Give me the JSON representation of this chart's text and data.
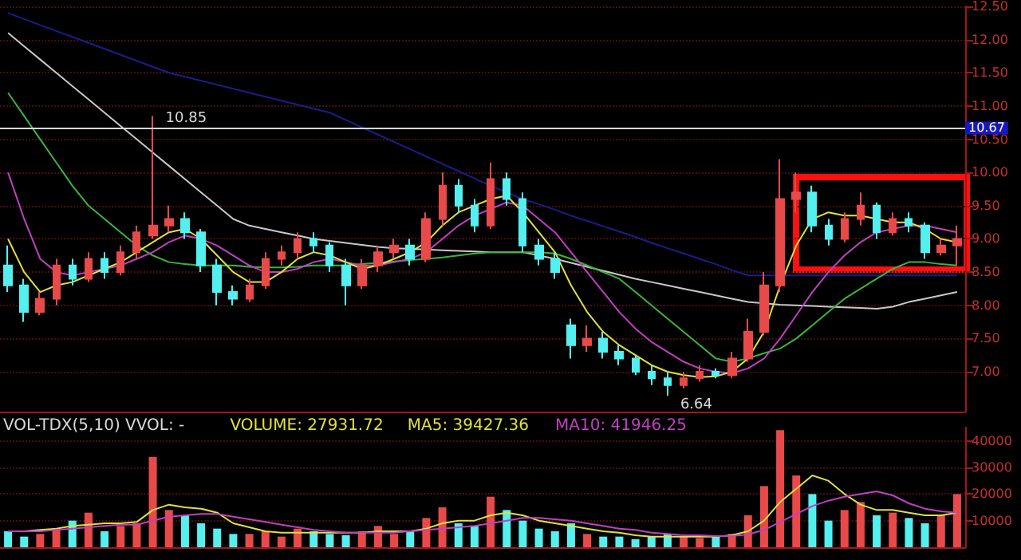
{
  "chart_data": [
    {
      "type": "candlestick",
      "categories": [
        null,
        null,
        null,
        null,
        null,
        null,
        null,
        null,
        null,
        null,
        null,
        null,
        null,
        null,
        null,
        null,
        null,
        null,
        null,
        null,
        null,
        null,
        null,
        null,
        null,
        null,
        null,
        null,
        null,
        null,
        null,
        null,
        null,
        null,
        null,
        null,
        null,
        null,
        null,
        null,
        null,
        null,
        null,
        null,
        null,
        null,
        null,
        null,
        null,
        null,
        null,
        null,
        null,
        null,
        null,
        null,
        null,
        null,
        null,
        null
      ],
      "ylim": [
        6.4,
        12.5
      ],
      "yticks": [
        {
          "value": 7,
          "label": "7.00"
        },
        {
          "value": 7.5,
          "label": "7.50"
        },
        {
          "value": 8,
          "label": "8.00"
        },
        {
          "value": 8.5,
          "label": "8.50"
        },
        {
          "value": 9,
          "label": "9.00"
        },
        {
          "value": 9.5,
          "label": "9.50"
        },
        {
          "value": 10,
          "label": "10.00"
        },
        {
          "value": 10.5,
          "label": "10.50"
        },
        {
          "value": 11,
          "label": "11.00"
        },
        {
          "value": 11.5,
          "label": "11.50"
        },
        {
          "value": 12,
          "label": "12.00"
        },
        {
          "value": 12.5,
          "label": "12.50"
        }
      ],
      "tick_labels": "y",
      "grid": "y",
      "marker": "none",
      "line_style": "solid",
      "ref_lines": [
        {
          "axis": "y",
          "value": 10.67,
          "label": "10.67",
          "color": "#d8d8d8"
        }
      ],
      "annotations": [
        "10.85",
        "6.64"
      ],
      "series": [
        {
          "type": "line",
          "color": "#1c1c8c",
          "values": [
            12.4,
            12.31,
            12.22,
            12.13,
            12.04,
            11.95,
            11.86,
            11.77,
            11.68,
            11.59,
            11.5,
            11.44,
            11.38,
            11.32,
            11.26,
            11.2,
            11.14,
            11.08,
            11.02,
            10.96,
            10.9,
            10.79,
            10.68,
            10.57,
            10.46,
            10.35,
            10.24,
            10.13,
            10.02,
            9.91,
            9.8,
            9.7,
            9.6,
            9.52,
            9.44,
            9.35,
            9.27,
            9.19,
            9.11,
            9.03,
            8.94,
            8.86,
            8.78,
            8.7,
            8.62,
            8.53,
            8.45,
            8.45,
            8.45,
            8.45,
            8.45,
            8.45,
            8.45,
            8.45,
            8.45,
            8.45,
            8.45,
            8.45,
            8.45,
            8.45
          ]
        },
        {
          "type": "line",
          "color": "#c8c8c8",
          "values": [
            12.1,
            11.9,
            11.7,
            11.5,
            11.3,
            11.1,
            10.9,
            10.7,
            10.5,
            10.3,
            10.1,
            9.9,
            9.7,
            9.5,
            9.3,
            9.2,
            9.15,
            9.1,
            9.05,
            9.0,
            8.97,
            8.94,
            8.91,
            8.88,
            8.86,
            8.85,
            8.84,
            8.83,
            8.82,
            8.81,
            8.8,
            8.8,
            8.8,
            8.75,
            8.7,
            8.64,
            8.58,
            8.52,
            8.46,
            8.4,
            8.35,
            8.3,
            8.25,
            8.2,
            8.15,
            8.1,
            8.05,
            8.03,
            8.01,
            8.0,
            7.99,
            7.98,
            7.97,
            7.96,
            7.95,
            7.98,
            8.05,
            8.1,
            8.15,
            8.2
          ]
        },
        {
          "type": "line",
          "color": "#3cb43c",
          "values": [
            11.2,
            10.85,
            10.5,
            10.15,
            9.8,
            9.5,
            9.3,
            9.1,
            8.9,
            8.75,
            8.65,
            8.62,
            8.6,
            8.6,
            8.6,
            8.58,
            8.57,
            8.57,
            8.58,
            8.6,
            8.6,
            8.6,
            8.62,
            8.64,
            8.66,
            8.68,
            8.7,
            8.72,
            8.75,
            8.78,
            8.8,
            8.8,
            8.8,
            8.8,
            8.78,
            8.7,
            8.6,
            8.5,
            8.4,
            8.2,
            8.0,
            7.8,
            7.6,
            7.4,
            7.2,
            7.15,
            7.2,
            7.28,
            7.35,
            7.5,
            7.7,
            7.9,
            8.1,
            8.25,
            8.4,
            8.55,
            8.65,
            8.65,
            8.62,
            8.6
          ]
        },
        {
          "type": "line",
          "color": "#c040c0",
          "values": [
            10.0,
            9.3,
            8.7,
            8.5,
            8.45,
            8.5,
            8.55,
            8.6,
            8.7,
            8.8,
            8.95,
            9.05,
            9.0,
            8.9,
            8.75,
            8.6,
            8.5,
            8.5,
            8.55,
            8.65,
            8.7,
            8.65,
            8.6,
            8.6,
            8.65,
            8.7,
            8.8,
            9.0,
            9.2,
            9.35,
            9.45,
            9.55,
            9.5,
            9.3,
            9.1,
            8.8,
            8.5,
            8.2,
            7.9,
            7.65,
            7.45,
            7.3,
            7.15,
            7.05,
            7.0,
            6.98,
            7.05,
            7.2,
            7.5,
            7.85,
            8.2,
            8.5,
            8.75,
            8.95,
            9.1,
            9.15,
            9.2,
            9.2,
            9.15,
            9.1
          ]
        },
        {
          "type": "line",
          "color": "#e0e040",
          "values": [
            9.0,
            8.5,
            8.2,
            8.3,
            8.35,
            8.45,
            8.55,
            8.65,
            8.8,
            8.95,
            9.1,
            9.15,
            9.0,
            8.75,
            8.5,
            8.35,
            8.35,
            8.5,
            8.7,
            8.8,
            8.75,
            8.65,
            8.55,
            8.6,
            8.7,
            8.8,
            8.95,
            9.2,
            9.4,
            9.5,
            9.6,
            9.65,
            9.4,
            9.1,
            8.8,
            8.3,
            7.9,
            7.6,
            7.4,
            7.25,
            7.1,
            7.0,
            6.95,
            6.92,
            6.93,
            7.0,
            7.2,
            7.6,
            8.3,
            8.9,
            9.3,
            9.4,
            9.35,
            9.35,
            9.3,
            9.25,
            9.25,
            9.15,
            9.0,
            8.95
          ]
        },
        {
          "type": "candlestick",
          "colors": [
            "#54f0f0",
            "#54f0f0",
            "#e84a4a",
            "#e84a4a",
            "#54f0f0",
            "#e84a4a",
            "#54f0f0",
            "#e84a4a",
            "#e84a4a",
            "#e84a4a",
            "#e84a4a",
            "#54f0f0",
            "#54f0f0",
            "#54f0f0",
            "#54f0f0",
            "#e84a4a",
            "#e84a4a",
            "#e84a4a",
            "#e84a4a",
            "#54f0f0",
            "#54f0f0",
            "#54f0f0",
            "#e84a4a",
            "#e84a4a",
            "#e84a4a",
            "#54f0f0",
            "#e84a4a",
            "#e84a4a",
            "#54f0f0",
            "#54f0f0",
            "#e84a4a",
            "#54f0f0",
            "#54f0f0",
            "#54f0f0",
            "#54f0f0",
            "#54f0f0",
            "#e84a4a",
            "#54f0f0",
            "#54f0f0",
            "#54f0f0",
            "#54f0f0",
            "#54f0f0",
            "#e84a4a",
            "#e84a4a",
            "#54f0f0",
            "#e84a4a",
            "#e84a4a",
            "#e84a4a",
            "#e84a4a",
            "#e84a4a",
            "#54f0f0",
            "#54f0f0",
            "#e84a4a",
            "#e84a4a",
            "#54f0f0",
            "#e84a4a",
            "#54f0f0",
            "#54f0f0",
            "#e84a4a",
            "#e84a4a"
          ],
          "ohlc": [
            [
              8.6,
              8.9,
              8.2,
              8.3
            ],
            [
              8.3,
              8.4,
              7.75,
              7.9
            ],
            [
              7.9,
              8.2,
              7.85,
              8.1
            ],
            [
              8.1,
              8.7,
              8.0,
              8.6
            ],
            [
              8.6,
              8.7,
              8.3,
              8.4
            ],
            [
              8.4,
              8.8,
              8.35,
              8.7
            ],
            [
              8.7,
              8.8,
              8.4,
              8.5
            ],
            [
              8.5,
              8.9,
              8.45,
              8.8
            ],
            [
              8.8,
              9.2,
              8.7,
              9.1
            ],
            [
              9.05,
              10.85,
              9.0,
              9.2
            ],
            [
              9.2,
              9.5,
              9.1,
              9.3
            ],
            [
              9.3,
              9.4,
              9.0,
              9.1
            ],
            [
              9.1,
              9.15,
              8.5,
              8.6
            ],
            [
              8.6,
              8.7,
              8.0,
              8.2
            ],
            [
              8.2,
              8.3,
              8.0,
              8.1
            ],
            [
              8.1,
              8.4,
              8.05,
              8.3
            ],
            [
              8.3,
              8.8,
              8.25,
              8.7
            ],
            [
              8.7,
              8.9,
              8.6,
              8.8
            ],
            [
              8.8,
              9.1,
              8.7,
              9.0
            ],
            [
              9.0,
              9.1,
              8.8,
              8.9
            ],
            [
              8.9,
              8.95,
              8.5,
              8.6
            ],
            [
              8.6,
              8.7,
              8.0,
              8.3
            ],
            [
              8.3,
              8.7,
              8.25,
              8.6
            ],
            [
              8.6,
              8.9,
              8.5,
              8.8
            ],
            [
              8.8,
              9.0,
              8.7,
              8.9
            ],
            [
              8.9,
              9.0,
              8.6,
              8.7
            ],
            [
              8.7,
              9.4,
              8.65,
              9.3
            ],
            [
              9.3,
              10.0,
              9.2,
              9.8
            ],
            [
              9.8,
              9.9,
              9.4,
              9.5
            ],
            [
              9.5,
              9.6,
              9.1,
              9.2
            ],
            [
              9.2,
              10.15,
              9.15,
              9.9
            ],
            [
              9.9,
              10.0,
              9.5,
              9.6
            ],
            [
              9.6,
              9.7,
              8.8,
              8.9
            ],
            [
              8.9,
              9.0,
              8.6,
              8.7
            ],
            [
              8.7,
              8.8,
              8.4,
              8.5
            ],
            [
              7.7,
              7.8,
              7.2,
              7.4
            ],
            [
              7.4,
              7.7,
              7.3,
              7.5
            ],
            [
              7.5,
              7.6,
              7.2,
              7.3
            ],
            [
              7.3,
              7.4,
              7.1,
              7.2
            ],
            [
              7.2,
              7.25,
              6.95,
              7.0
            ],
            [
              7.0,
              7.1,
              6.8,
              6.9
            ],
            [
              6.9,
              7.0,
              6.64,
              6.8
            ],
            [
              6.8,
              7.0,
              6.75,
              6.9
            ],
            [
              6.9,
              7.1,
              6.85,
              7.0
            ],
            [
              7.0,
              7.05,
              6.9,
              6.95
            ],
            [
              6.95,
              7.3,
              6.9,
              7.2
            ],
            [
              7.2,
              7.8,
              7.15,
              7.6
            ],
            [
              7.6,
              8.5,
              7.55,
              8.3
            ],
            [
              8.3,
              10.2,
              8.2,
              9.6
            ],
            [
              9.6,
              10.0,
              9.4,
              9.7
            ],
            [
              9.7,
              9.8,
              9.1,
              9.2
            ],
            [
              9.2,
              9.3,
              8.9,
              9.0
            ],
            [
              9.0,
              9.4,
              8.95,
              9.3
            ],
            [
              9.3,
              9.7,
              9.2,
              9.5
            ],
            [
              9.5,
              9.55,
              9.0,
              9.1
            ],
            [
              9.1,
              9.4,
              9.05,
              9.3
            ],
            [
              9.3,
              9.4,
              9.1,
              9.2
            ],
            [
              9.2,
              9.25,
              8.7,
              8.8
            ],
            [
              8.8,
              9.0,
              8.75,
              8.9
            ],
            [
              8.9,
              9.2,
              8.6,
              9.0
            ]
          ]
        }
      ]
    },
    {
      "type": "bar",
      "categories": [
        null,
        null,
        null,
        null,
        null,
        null,
        null,
        null,
        null,
        null,
        null,
        null,
        null,
        null,
        null,
        null,
        null,
        null,
        null,
        null,
        null,
        null,
        null,
        null,
        null,
        null,
        null,
        null,
        null,
        null,
        null,
        null,
        null,
        null,
        null,
        null,
        null,
        null,
        null,
        null,
        null,
        null,
        null,
        null,
        null,
        null,
        null,
        null,
        null,
        null,
        null,
        null,
        null,
        null,
        null,
        null,
        null,
        null,
        null,
        null
      ],
      "ylim": [
        0,
        45000
      ],
      "yticks": [
        10000,
        20000,
        30000,
        40000
      ],
      "tick_labels": "y",
      "grid": "y",
      "marker": "none",
      "line_style": "solid",
      "annotations": [
        "VOL-TDX(5,10) VVOL: -",
        "VOLUME: 27931.72",
        "MA5: 39427.36",
        "MA10: 41946.25"
      ],
      "series": [
        {
          "type": "bar",
          "colors": [
            "#54f0f0",
            "#54f0f0",
            "#e84a4a",
            "#e84a4a",
            "#54f0f0",
            "#e84a4a",
            "#54f0f0",
            "#e84a4a",
            "#e84a4a",
            "#e84a4a",
            "#e84a4a",
            "#54f0f0",
            "#54f0f0",
            "#54f0f0",
            "#54f0f0",
            "#e84a4a",
            "#e84a4a",
            "#e84a4a",
            "#e84a4a",
            "#54f0f0",
            "#54f0f0",
            "#54f0f0",
            "#e84a4a",
            "#e84a4a",
            "#e84a4a",
            "#54f0f0",
            "#e84a4a",
            "#e84a4a",
            "#54f0f0",
            "#54f0f0",
            "#e84a4a",
            "#54f0f0",
            "#54f0f0",
            "#54f0f0",
            "#54f0f0",
            "#54f0f0",
            "#e84a4a",
            "#54f0f0",
            "#54f0f0",
            "#54f0f0",
            "#54f0f0",
            "#54f0f0",
            "#e84a4a",
            "#e84a4a",
            "#54f0f0",
            "#e84a4a",
            "#e84a4a",
            "#e84a4a",
            "#e84a4a",
            "#e84a4a",
            "#54f0f0",
            "#54f0f0",
            "#e84a4a",
            "#e84a4a",
            "#54f0f0",
            "#e84a4a",
            "#54f0f0",
            "#54f0f0",
            "#e84a4a",
            "#e84a4a"
          ],
          "values": [
            6000,
            4000,
            5000,
            7000,
            10000,
            13000,
            6000,
            8000,
            9000,
            34000,
            14000,
            12000,
            9000,
            7000,
            5000,
            5000,
            6000,
            4000,
            7000,
            6000,
            5000,
            4500,
            6000,
            8000,
            5000,
            6000,
            11000,
            15000,
            9000,
            8000,
            19000,
            14000,
            10000,
            7000,
            6000,
            9000,
            5000,
            4000,
            4000,
            3000,
            4000,
            5000,
            4000,
            3500,
            4000,
            5000,
            12000,
            23000,
            44000,
            27000,
            20000,
            10000,
            14000,
            17000,
            12000,
            13000,
            11000,
            9000,
            12000,
            20000
          ]
        },
        {
          "type": "line",
          "color": "#e0e040",
          "values": [
            6000,
            6000,
            6500,
            7000,
            8000,
            8500,
            9000,
            9000,
            9500,
            14000,
            16000,
            15000,
            14500,
            13000,
            9000,
            7500,
            6000,
            5500,
            5500,
            5500,
            5500,
            5500,
            5500,
            6000,
            6000,
            6000,
            7000,
            9000,
            10000,
            10000,
            12000,
            13000,
            12000,
            10000,
            9000,
            8000,
            7000,
            6000,
            5500,
            4500,
            4000,
            4000,
            4000,
            4000,
            4000,
            4500,
            6000,
            10000,
            17000,
            22000,
            27000,
            25000,
            20000,
            16000,
            14000,
            14000,
            13000,
            12000,
            12000,
            13000
          ]
        },
        {
          "type": "line",
          "color": "#c040c0",
          "values": [
            6000,
            6000,
            6000,
            6500,
            7000,
            7500,
            8000,
            8500,
            8500,
            10000,
            11500,
            12000,
            12500,
            12500,
            11500,
            10500,
            9500,
            8500,
            7500,
            6500,
            6000,
            5500,
            5500,
            5500,
            5500,
            6000,
            6500,
            7000,
            7500,
            8000,
            9000,
            10000,
            11000,
            11000,
            10500,
            10000,
            9000,
            8000,
            7000,
            6500,
            5500,
            5000,
            4500,
            4500,
            4200,
            4200,
            4800,
            6500,
            9500,
            12500,
            15500,
            17500,
            19000,
            20000,
            21000,
            19500,
            16500,
            14500,
            13500,
            13000
          ]
        }
      ]
    }
  ]
}
